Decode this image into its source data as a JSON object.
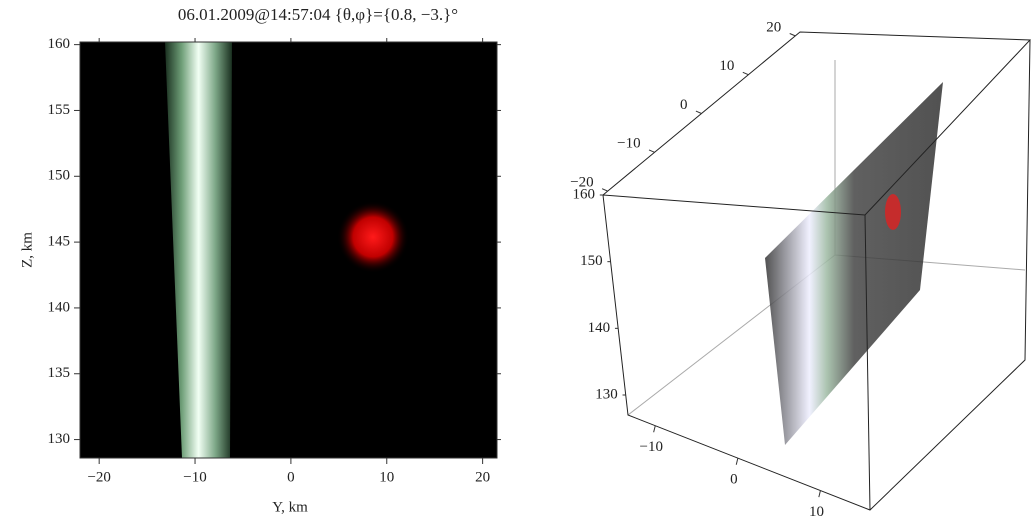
{
  "chart_data": [
    {
      "type": "density",
      "title": "06.01.2009@14:57:04 {θ,φ}={0.8, −3.}°",
      "xlabel": "Y, km",
      "ylabel": "Z, km",
      "xlim": [
        -22,
        21.5
      ],
      "xticks": [
        {
          "value": -20,
          "label": "−20"
        },
        {
          "value": -10,
          "label": "−10"
        },
        0,
        10,
        20
      ],
      "ylim": [
        128.6,
        160.2
      ],
      "yticks": [
        130,
        135,
        140,
        145,
        150,
        155,
        160
      ]
    },
    {
      "type": "3d",
      "xlim": [
        -21,
        21
      ],
      "xticks": [
        20,
        10,
        0,
        {
          "value": -10,
          "label": "−10"
        },
        {
          "value": -20,
          "label": "−20"
        }
      ],
      "zlim": [
        127,
        160
      ],
      "zticks": [
        160,
        150,
        140,
        130
      ],
      "ylim": [
        -13.3,
        16
      ],
      "yticks": [
        {
          "value": -10,
          "label": "−10"
        },
        0,
        10
      ]
    }
  ]
}
